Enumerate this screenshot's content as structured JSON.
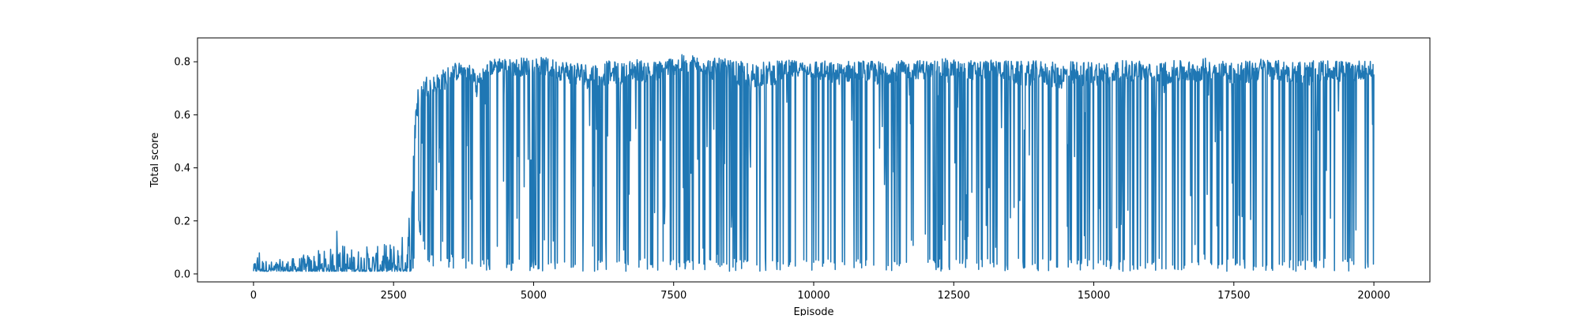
{
  "chart_data": {
    "type": "line",
    "title": "",
    "xlabel": "Episode",
    "ylabel": "Total score",
    "xlim": [
      -1000,
      21000
    ],
    "ylim": [
      -0.03,
      0.89
    ],
    "grid": false,
    "legend": null,
    "line_color": "#1f77b4",
    "x_ticks": [
      0,
      2500,
      5000,
      7500,
      10000,
      12500,
      15000,
      17500,
      20000
    ],
    "x_tick_labels": [
      "0",
      "2500",
      "5000",
      "7500",
      "10000",
      "12500",
      "15000",
      "17500",
      "20000"
    ],
    "y_ticks": [
      0.0,
      0.2,
      0.4,
      0.6,
      0.8
    ],
    "y_tick_labels": [
      "0.0",
      "0.2",
      "0.4",
      "0.6",
      "0.8"
    ],
    "series": [
      {
        "x": [
          0,
          100,
          140,
          180,
          250,
          400,
          550,
          700,
          850,
          1000,
          1150,
          1300,
          1400,
          1450,
          1500,
          1550,
          1600,
          1700,
          1850,
          2000,
          2150,
          2300,
          2400,
          2500,
          2600,
          2700,
          2750,
          2800,
          2850,
          2880,
          2900,
          2930,
          2960,
          3000,
          3050,
          3100,
          3200,
          3300,
          3400,
          3500,
          3600,
          3700,
          3800,
          3900,
          4000,
          4100,
          4250,
          4400,
          4600,
          4800,
          5000,
          5200,
          5400,
          5600,
          5800,
          6000,
          6200,
          6400,
          6600,
          6800,
          7000,
          7200,
          7400,
          7600,
          7800,
          8000,
          8200,
          8400,
          8600,
          8800,
          9000,
          9200,
          9400,
          9600,
          9800,
          10000,
          10200,
          10400,
          10600,
          10800,
          11000,
          11200,
          11400,
          11600,
          11800,
          12000,
          12200,
          12400,
          12600,
          12800,
          13000,
          13200,
          13400,
          13600,
          13800,
          14000,
          14200,
          14400,
          14600,
          14800,
          15000,
          15200,
          15400,
          15600,
          15800,
          16000,
          16200,
          16400,
          16600,
          16800,
          17000,
          17200,
          17400,
          17600,
          17800,
          18000,
          18200,
          18400,
          18600,
          18800,
          19000,
          19200,
          19400,
          19600,
          19800,
          20000
        ],
        "y_mean": [
          0.02,
          0.03,
          0.05,
          0.03,
          0.02,
          0.02,
          0.02,
          0.02,
          0.02,
          0.03,
          0.03,
          0.03,
          0.04,
          0.05,
          0.08,
          0.05,
          0.04,
          0.03,
          0.03,
          0.03,
          0.03,
          0.03,
          0.03,
          0.04,
          0.04,
          0.06,
          0.08,
          0.12,
          0.3,
          0.5,
          0.6,
          0.62,
          0.64,
          0.66,
          0.68,
          0.7,
          0.7,
          0.7,
          0.72,
          0.74,
          0.75,
          0.76,
          0.76,
          0.74,
          0.7,
          0.74,
          0.77,
          0.78,
          0.77,
          0.77,
          0.78,
          0.77,
          0.76,
          0.75,
          0.74,
          0.73,
          0.74,
          0.75,
          0.74,
          0.76,
          0.75,
          0.74,
          0.77,
          0.78,
          0.78,
          0.78,
          0.76,
          0.75,
          0.74,
          0.73,
          0.74,
          0.74,
          0.75,
          0.76,
          0.77,
          0.76,
          0.75,
          0.74,
          0.75,
          0.76,
          0.75,
          0.74,
          0.75,
          0.76,
          0.76,
          0.76,
          0.76,
          0.76,
          0.76,
          0.76,
          0.76,
          0.76,
          0.76,
          0.74,
          0.74,
          0.75,
          0.74,
          0.73,
          0.74,
          0.74,
          0.74,
          0.75,
          0.75,
          0.75,
          0.76,
          0.74,
          0.74,
          0.75,
          0.75,
          0.75,
          0.76,
          0.76,
          0.75,
          0.74,
          0.75,
          0.76,
          0.76,
          0.75,
          0.75,
          0.74,
          0.75,
          0.76,
          0.75,
          0.75,
          0.76,
          0.76
        ],
        "y_max": [
          0.03,
          0.12,
          0.07,
          0.06,
          0.05,
          0.05,
          0.06,
          0.06,
          0.07,
          0.08,
          0.09,
          0.09,
          0.1,
          0.13,
          0.23,
          0.15,
          0.12,
          0.1,
          0.1,
          0.11,
          0.1,
          0.11,
          0.12,
          0.13,
          0.14,
          0.16,
          0.18,
          0.4,
          0.56,
          0.65,
          0.7,
          0.72,
          0.74,
          0.75,
          0.76,
          0.77,
          0.76,
          0.78,
          0.79,
          0.8,
          0.81,
          0.81,
          0.81,
          0.8,
          0.79,
          0.8,
          0.82,
          0.83,
          0.82,
          0.83,
          0.83,
          0.83,
          0.82,
          0.82,
          0.82,
          0.81,
          0.82,
          0.82,
          0.81,
          0.83,
          0.82,
          0.82,
          0.83,
          0.84,
          0.84,
          0.83,
          0.83,
          0.83,
          0.82,
          0.82,
          0.82,
          0.82,
          0.82,
          0.82,
          0.81,
          0.82,
          0.82,
          0.81,
          0.82,
          0.82,
          0.82,
          0.82,
          0.81,
          0.82,
          0.82,
          0.82,
          0.82,
          0.83,
          0.82,
          0.82,
          0.82,
          0.82,
          0.82,
          0.82,
          0.82,
          0.82,
          0.82,
          0.81,
          0.82,
          0.82,
          0.82,
          0.82,
          0.82,
          0.82,
          0.82,
          0.81,
          0.82,
          0.82,
          0.82,
          0.82,
          0.83,
          0.82,
          0.82,
          0.82,
          0.82,
          0.83,
          0.82,
          0.82,
          0.82,
          0.82,
          0.82,
          0.82,
          0.82,
          0.82,
          0.82,
          0.81
        ],
        "y_min": [
          0.01,
          0.01,
          0.01,
          0.01,
          0.01,
          0.01,
          0.01,
          0.01,
          0.01,
          0.01,
          0.01,
          0.01,
          0.01,
          0.01,
          0.01,
          0.01,
          0.01,
          0.01,
          0.01,
          0.01,
          0.01,
          0.01,
          0.01,
          0.01,
          0.01,
          0.01,
          0.01,
          0.01,
          0.02,
          0.08,
          0.2,
          0.25,
          0.15,
          0.12,
          0.08,
          0.05,
          0.03,
          0.02,
          0.02,
          0.02,
          0.02,
          0.02,
          0.02,
          0.01,
          0.01,
          0.01,
          0.01,
          0.01,
          0.01,
          0.01,
          0.01,
          0.01,
          0.01,
          0.01,
          0.01,
          0.01,
          0.01,
          0.01,
          0.01,
          0.01,
          0.01,
          0.01,
          0.01,
          0.01,
          0.01,
          0.01,
          0.01,
          0.01,
          0.01,
          0.01,
          0.01,
          0.01,
          0.01,
          0.01,
          0.01,
          0.01,
          0.01,
          0.01,
          0.01,
          0.01,
          0.01,
          0.01,
          0.01,
          0.01,
          0.01,
          0.01,
          0.01,
          0.01,
          0.01,
          0.01,
          0.01,
          0.01,
          0.01,
          0.01,
          0.01,
          0.01,
          0.01,
          0.01,
          0.01,
          0.01,
          0.01,
          0.01,
          0.01,
          0.01,
          0.01,
          0.01,
          0.01,
          0.01,
          0.01,
          0.01,
          0.01,
          0.01,
          0.01,
          0.01,
          0.01,
          0.01,
          0.01,
          0.01,
          0.01,
          0.01,
          0.01,
          0.01,
          0.01,
          0.01,
          0.01,
          0.01
        ]
      }
    ]
  }
}
